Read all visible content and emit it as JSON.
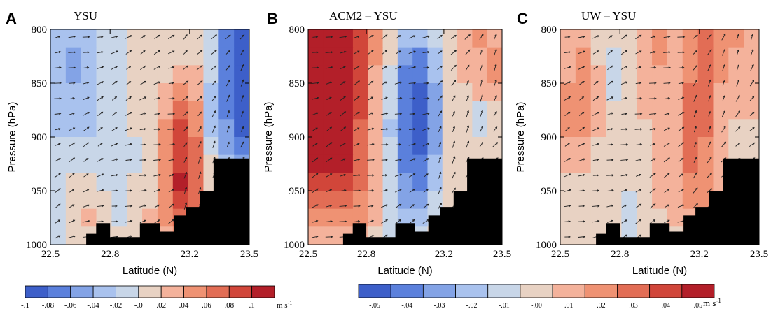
{
  "chart_data": [
    {
      "panel": "A",
      "title": "YSU",
      "type": "heatmap",
      "xlabel": "Latitude (N)",
      "ylabel": "Pressure (hPa)",
      "xticks": [
        "22.5",
        "22.8",
        "23.2",
        "23.5"
      ],
      "yticks": [
        "800",
        "850",
        "900",
        "950",
        "1000"
      ],
      "xlim": [
        22.5,
        23.5
      ],
      "ylim": [
        1000,
        800
      ],
      "colorbar_labels": [
        "-.1",
        "-.08",
        "-.06",
        "-.04",
        "-.02",
        "-.0",
        ".02",
        ".04",
        ".06",
        ".08",
        ".1"
      ],
      "colorbar_unit": "m s",
      "colorbar_unit_sup": "-1",
      "palette": [
        "#3d5fc9",
        "#5b80dc",
        "#83a3e6",
        "#a9c2ee",
        "#c8d6e8",
        "#e8d2c3",
        "#f4b29b",
        "#ef9273",
        "#e26d55",
        "#d1463a",
        "#b31f29"
      ],
      "field_levels": [
        [
          3,
          3,
          3,
          4,
          4,
          5,
          5,
          5,
          5,
          5,
          4,
          1,
          0
        ],
        [
          3,
          2,
          3,
          4,
          4,
          5,
          5,
          5,
          5,
          5,
          4,
          1,
          0
        ],
        [
          3,
          2,
          3,
          4,
          4,
          5,
          5,
          5,
          6,
          6,
          4,
          1,
          0
        ],
        [
          3,
          3,
          3,
          4,
          4,
          5,
          5,
          6,
          7,
          6,
          3,
          1,
          0
        ],
        [
          3,
          3,
          3,
          4,
          4,
          5,
          5,
          6,
          8,
          7,
          3,
          1,
          0
        ],
        [
          3,
          3,
          3,
          4,
          4,
          5,
          5,
          7,
          9,
          7,
          3,
          2,
          0
        ],
        [
          4,
          4,
          4,
          4,
          4,
          4,
          5,
          7,
          9,
          8,
          4,
          2,
          1
        ],
        [
          4,
          4,
          4,
          4,
          4,
          4,
          5,
          7,
          9,
          8,
          5,
          3,
          2
        ],
        [
          4,
          5,
          5,
          4,
          4,
          5,
          5,
          7,
          10,
          8,
          5,
          3,
          2
        ],
        [
          4,
          5,
          5,
          5,
          4,
          5,
          5,
          7,
          9,
          8,
          5,
          4,
          3
        ],
        [
          4,
          5,
          6,
          5,
          4,
          5,
          6,
          7,
          8,
          7,
          5,
          4,
          3
        ],
        [
          4,
          5,
          5,
          5,
          5,
          5,
          5,
          6,
          7,
          6,
          5,
          4,
          3
        ]
      ]
    },
    {
      "panel": "B",
      "title": "ACM2 – YSU",
      "type": "heatmap",
      "xlabel": "Latitude (N)",
      "ylabel": "Pressure (hPa)",
      "xticks": [
        "22.5",
        "22.8",
        "23.2",
        "23.5"
      ],
      "yticks": [
        "800",
        "850",
        "900",
        "950",
        "1000"
      ],
      "xlim": [
        22.5,
        23.5
      ],
      "ylim": [
        1000,
        800
      ],
      "colorbar_labels": [
        "-.05",
        "-.04",
        "-.03",
        "-.02",
        "-.01",
        "-.00",
        ".01",
        ".02",
        ".03",
        ".04",
        ".05"
      ],
      "colorbar_unit": "m s",
      "colorbar_unit_sup": "-1",
      "palette": [
        "#3d5fc9",
        "#5b80dc",
        "#83a3e6",
        "#a9c2ee",
        "#c8d6e8",
        "#e8d2c3",
        "#f4b29b",
        "#ef9273",
        "#e26d55",
        "#d1463a",
        "#b31f29"
      ],
      "field_levels": [
        [
          10,
          10,
          10,
          9,
          7,
          5,
          3,
          3,
          4,
          5,
          6,
          7,
          6
        ],
        [
          10,
          10,
          10,
          9,
          7,
          5,
          2,
          1,
          3,
          5,
          6,
          6,
          7
        ],
        [
          10,
          10,
          10,
          9,
          6,
          4,
          1,
          1,
          3,
          5,
          6,
          6,
          7
        ],
        [
          10,
          10,
          10,
          9,
          6,
          4,
          1,
          0,
          2,
          5,
          5,
          6,
          6
        ],
        [
          10,
          10,
          10,
          9,
          6,
          4,
          1,
          0,
          2,
          5,
          5,
          4,
          5
        ],
        [
          10,
          10,
          10,
          8,
          6,
          3,
          1,
          0,
          2,
          5,
          5,
          4,
          5
        ],
        [
          10,
          10,
          10,
          8,
          6,
          4,
          1,
          0,
          2,
          5,
          5,
          5,
          5
        ],
        [
          10,
          10,
          10,
          8,
          6,
          4,
          1,
          1,
          3,
          5,
          5,
          5,
          5
        ],
        [
          9,
          9,
          9,
          8,
          6,
          4,
          2,
          1,
          3,
          5,
          5,
          5,
          5
        ],
        [
          8,
          8,
          8,
          7,
          6,
          4,
          2,
          2,
          4,
          5,
          5,
          5,
          5
        ],
        [
          7,
          7,
          7,
          7,
          6,
          4,
          3,
          3,
          4,
          5,
          5,
          5,
          5
        ],
        [
          6,
          6,
          6,
          6,
          5,
          4,
          4,
          4,
          5,
          5,
          5,
          5,
          5
        ]
      ]
    },
    {
      "panel": "C",
      "title": "UW – YSU",
      "type": "heatmap",
      "xlabel": "Latitude (N)",
      "ylabel": "Pressure (hPa)",
      "xticks": [
        "22.5",
        "22.8",
        "23.2",
        "23.5"
      ],
      "yticks": [
        "800",
        "850",
        "900",
        "950",
        "1000"
      ],
      "xlim": [
        22.5,
        23.5
      ],
      "ylim": [
        1000,
        800
      ],
      "palette": [
        "#3d5fc9",
        "#5b80dc",
        "#83a3e6",
        "#a9c2ee",
        "#c8d6e8",
        "#e8d2c3",
        "#f4b29b",
        "#ef9273",
        "#e26d55",
        "#d1463a",
        "#b31f29"
      ],
      "field_levels": [
        [
          6,
          6,
          5,
          5,
          5,
          6,
          7,
          6,
          7,
          8,
          7,
          7,
          6
        ],
        [
          6,
          7,
          5,
          4,
          5,
          6,
          7,
          6,
          7,
          8,
          7,
          6,
          6
        ],
        [
          6,
          7,
          6,
          4,
          5,
          6,
          6,
          6,
          7,
          8,
          7,
          6,
          6
        ],
        [
          7,
          7,
          6,
          4,
          5,
          6,
          6,
          6,
          8,
          8,
          6,
          6,
          6
        ],
        [
          7,
          7,
          6,
          5,
          5,
          6,
          6,
          6,
          8,
          8,
          6,
          6,
          6
        ],
        [
          7,
          7,
          6,
          5,
          5,
          5,
          6,
          6,
          8,
          8,
          6,
          5,
          5
        ],
        [
          6,
          6,
          5,
          5,
          5,
          5,
          6,
          6,
          8,
          7,
          6,
          5,
          5
        ],
        [
          6,
          6,
          5,
          5,
          5,
          5,
          6,
          6,
          8,
          7,
          6,
          5,
          5
        ],
        [
          5,
          5,
          5,
          5,
          5,
          5,
          6,
          6,
          7,
          7,
          6,
          5,
          5
        ],
        [
          5,
          5,
          5,
          5,
          4,
          5,
          6,
          6,
          7,
          7,
          6,
          5,
          5
        ],
        [
          5,
          5,
          5,
          5,
          4,
          5,
          5,
          6,
          6,
          6,
          5,
          5,
          5
        ],
        [
          5,
          5,
          5,
          5,
          4,
          5,
          5,
          5,
          6,
          6,
          5,
          5,
          5
        ]
      ]
    }
  ],
  "terrain": {
    "color": "#000000",
    "profile_lat": [
      22.5,
      22.68,
      22.68,
      22.73,
      22.73,
      22.8,
      22.8,
      22.95,
      22.95,
      23.05,
      23.05,
      23.12,
      23.12,
      23.18,
      23.18,
      23.25,
      23.25,
      23.32,
      23.32,
      23.5
    ],
    "profile_hpa": [
      1000,
      1000,
      990,
      990,
      980,
      980,
      993,
      993,
      980,
      980,
      988,
      988,
      973,
      973,
      965,
      965,
      950,
      950,
      920,
      920
    ]
  },
  "vectors": {
    "color": "#222222",
    "cols": 13,
    "rows": 12
  }
}
